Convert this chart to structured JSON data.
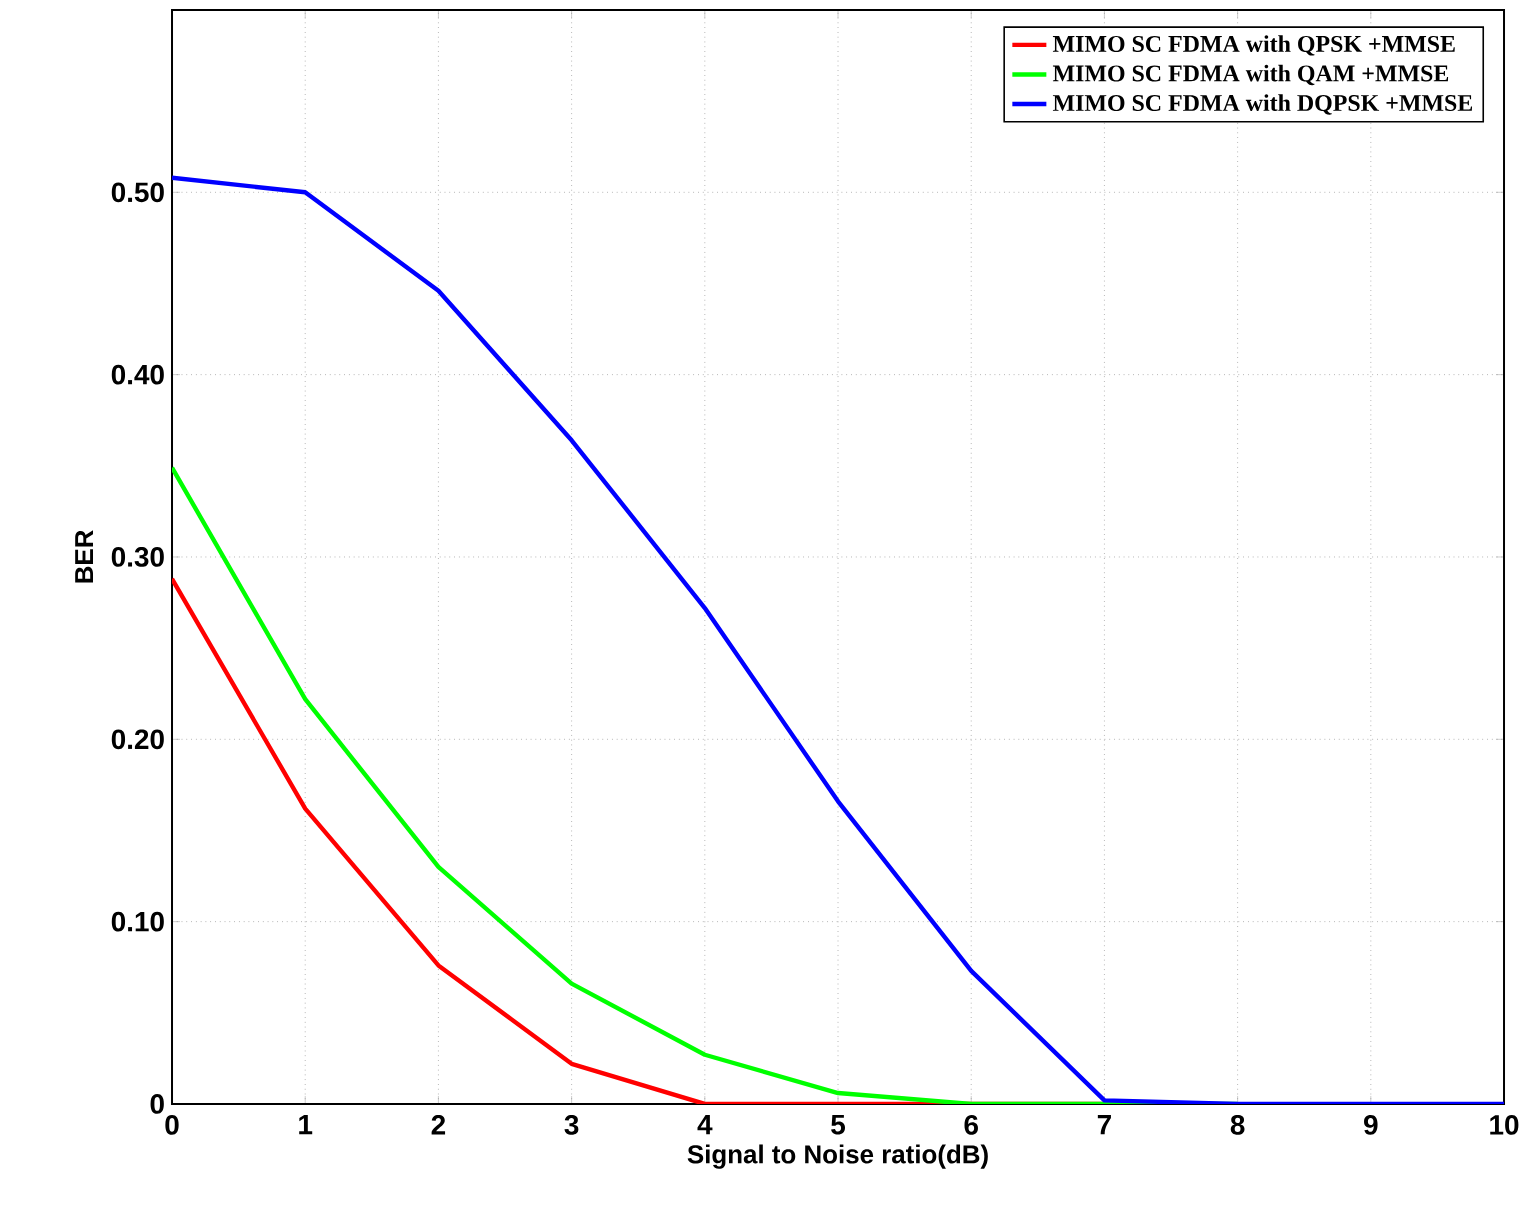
{
  "chart_data": {
    "type": "line",
    "xlabel": "Signal to Noise ratio(dB)",
    "ylabel": "BER",
    "x": [
      0,
      1,
      2,
      3,
      4,
      5,
      6,
      7,
      8,
      9,
      10
    ],
    "series": [
      {
        "name": "MIMO SC FDMA  with QPSK +MMSE",
        "color": "#ff0000",
        "values": [
          0.288,
          0.162,
          0.076,
          0.022,
          0,
          0,
          0,
          0,
          null,
          null,
          null
        ]
      },
      {
        "name": "MIMO SC FDMA  with QAM +MMSE",
        "color": "#00ff00",
        "values": [
          0.349,
          0.222,
          0.13,
          0.066,
          0.027,
          0.006,
          0,
          0,
          0,
          null,
          null
        ]
      },
      {
        "name": "MIMO SC FDMA  with DQPSK +MMSE",
        "color": "#0000ff",
        "values": [
          0.508,
          0.5,
          0.446,
          0.364,
          0.272,
          0.166,
          0.073,
          0.002,
          0,
          0,
          0
        ]
      }
    ],
    "xlim": [
      0,
      10
    ],
    "ylim": [
      0,
      0.6
    ],
    "xticks": [
      0,
      1,
      2,
      3,
      4,
      5,
      6,
      7,
      8,
      9,
      10
    ],
    "yticks": [
      0,
      {
        "value": 0.1,
        "label": "0.10"
      },
      {
        "value": 0.2,
        "label": "0.20"
      },
      {
        "value": 0.3,
        "label": "0.30"
      },
      {
        "value": 0.4,
        "label": "0.40"
      },
      {
        "value": 0.5,
        "label": "0.50"
      }
    ],
    "grid": true,
    "legend": "top right",
    "line_style": "solid",
    "marker": "none"
  }
}
